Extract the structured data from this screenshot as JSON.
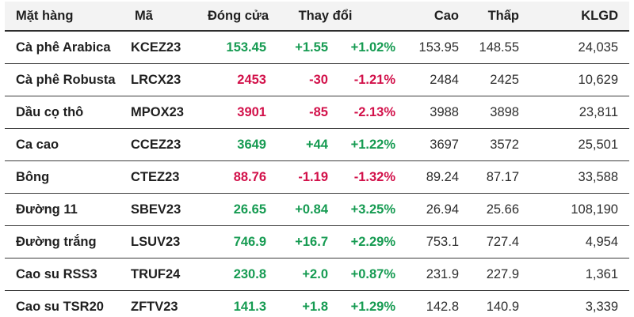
{
  "colors": {
    "up": "#169b52",
    "down": "#d2114a",
    "header_bg": "#f3f3f3",
    "row_border": "#3c3c3c",
    "text": "#1f1f1f"
  },
  "table": {
    "headers": [
      "Mặt hàng",
      "Mã",
      "Đóng cửa",
      "Thay đổi",
      "Cao",
      "Thấp",
      "KLGD"
    ],
    "rows": [
      {
        "name": "Cà phê Arabica",
        "code": "KCEZ23",
        "close": "153.45",
        "change": "+1.55",
        "change_pct": "+1.02%",
        "high": "153.95",
        "low": "148.55",
        "volume": "24,035",
        "direction": "up"
      },
      {
        "name": "Cà phê Robusta",
        "code": "LRCX23",
        "close": "2453",
        "change": "-30",
        "change_pct": "-1.21%",
        "high": "2484",
        "low": "2425",
        "volume": "10,629",
        "direction": "down"
      },
      {
        "name": "Dầu cọ thô",
        "code": "MPOX23",
        "close": "3901",
        "change": "-85",
        "change_pct": "-2.13%",
        "high": "3988",
        "low": "3898",
        "volume": "23,811",
        "direction": "down"
      },
      {
        "name": "Ca cao",
        "code": "CCEZ23",
        "close": "3649",
        "change": "+44",
        "change_pct": "+1.22%",
        "high": "3697",
        "low": "3572",
        "volume": "25,501",
        "direction": "up"
      },
      {
        "name": "Bông",
        "code": "CTEZ23",
        "close": "88.76",
        "change": "-1.19",
        "change_pct": "-1.32%",
        "high": "89.24",
        "low": "87.17",
        "volume": "33,588",
        "direction": "down"
      },
      {
        "name": "Đường 11",
        "code": "SBEV23",
        "close": "26.65",
        "change": "+0.84",
        "change_pct": "+3.25%",
        "high": "26.94",
        "low": "25.66",
        "volume": "108,190",
        "direction": "up"
      },
      {
        "name": "Đường trắng",
        "code": "LSUV23",
        "close": "746.9",
        "change": "+16.7",
        "change_pct": "+2.29%",
        "high": "753.1",
        "low": "727.4",
        "volume": "4,954",
        "direction": "up"
      },
      {
        "name": "Cao su RSS3",
        "code": "TRUF24",
        "close": "230.8",
        "change": "+2.0",
        "change_pct": "+0.87%",
        "high": "231.9",
        "low": "227.9",
        "volume": "1,361",
        "direction": "up"
      },
      {
        "name": "Cao su TSR20",
        "code": "ZFTV23",
        "close": "141.3",
        "change": "+1.8",
        "change_pct": "+1.29%",
        "high": "142.8",
        "low": "140.9",
        "volume": "3,339",
        "direction": "up"
      }
    ]
  }
}
